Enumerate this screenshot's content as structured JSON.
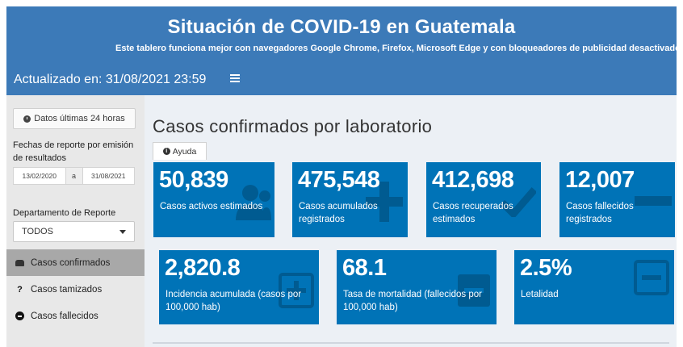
{
  "header": {
    "title": "Situación de COVID-19 en Guatemala",
    "subtitle": "Este tablero funciona mejor con navegadores Google Chrome, Firefox, Microsoft Edge y con bloqueadores de publicidad desactivado",
    "updated": "Actualizado en: 31/08/2021 23:59",
    "menu_icon": "hamburger-icon"
  },
  "sidebar": {
    "btn_24h": "Datos últimas 24 horas",
    "fechas_label": "Fechas de reporte por emisión de resultados",
    "date_from": "13/02/2020",
    "date_sep": "a",
    "date_to": "31/08/2021",
    "depto_label": "Departamento de Reporte",
    "depto_value": "TODOS",
    "nav": [
      {
        "label": "Casos confirmados",
        "icon": "car-icon",
        "active": true
      },
      {
        "label": "Casos tamizados",
        "icon": "question-icon",
        "active": false
      },
      {
        "label": "Casos fallecidos",
        "icon": "minus-circle-icon",
        "active": false
      }
    ]
  },
  "main": {
    "title": "Casos confirmados por laboratorio",
    "ayuda": "Ayuda",
    "cards": [
      {
        "value": "50,839",
        "label": "Casos activos estimados",
        "icon": "users-icon"
      },
      {
        "value": "475,548",
        "label": "Casos acumulados registrados",
        "icon": "plus-icon"
      },
      {
        "value": "412,698",
        "label": "Casos recuperados estimados",
        "icon": "check-icon"
      },
      {
        "value": "12,007",
        "label": "Casos fallecidos registrados",
        "icon": "minus-icon"
      },
      {
        "value": "2,820.8",
        "label": "Incidencia acumulada (casos por 100,000 hab)",
        "icon": "plus-square-icon"
      },
      {
        "value": "68.1",
        "label": "Tasa de mortalidad (fallecidos por 100,000 hab)",
        "icon": "minus-square-icon"
      },
      {
        "value": "2.5%",
        "label": "Letalidad",
        "icon": "minus-square-icon"
      }
    ]
  },
  "colors": {
    "header_bg": "#3c7ab8",
    "card_bg": "#0073b7",
    "sidebar_bg": "#e8e8e8",
    "active_nav": "#a8a8a8",
    "content_bg": "#ecf0f5"
  }
}
